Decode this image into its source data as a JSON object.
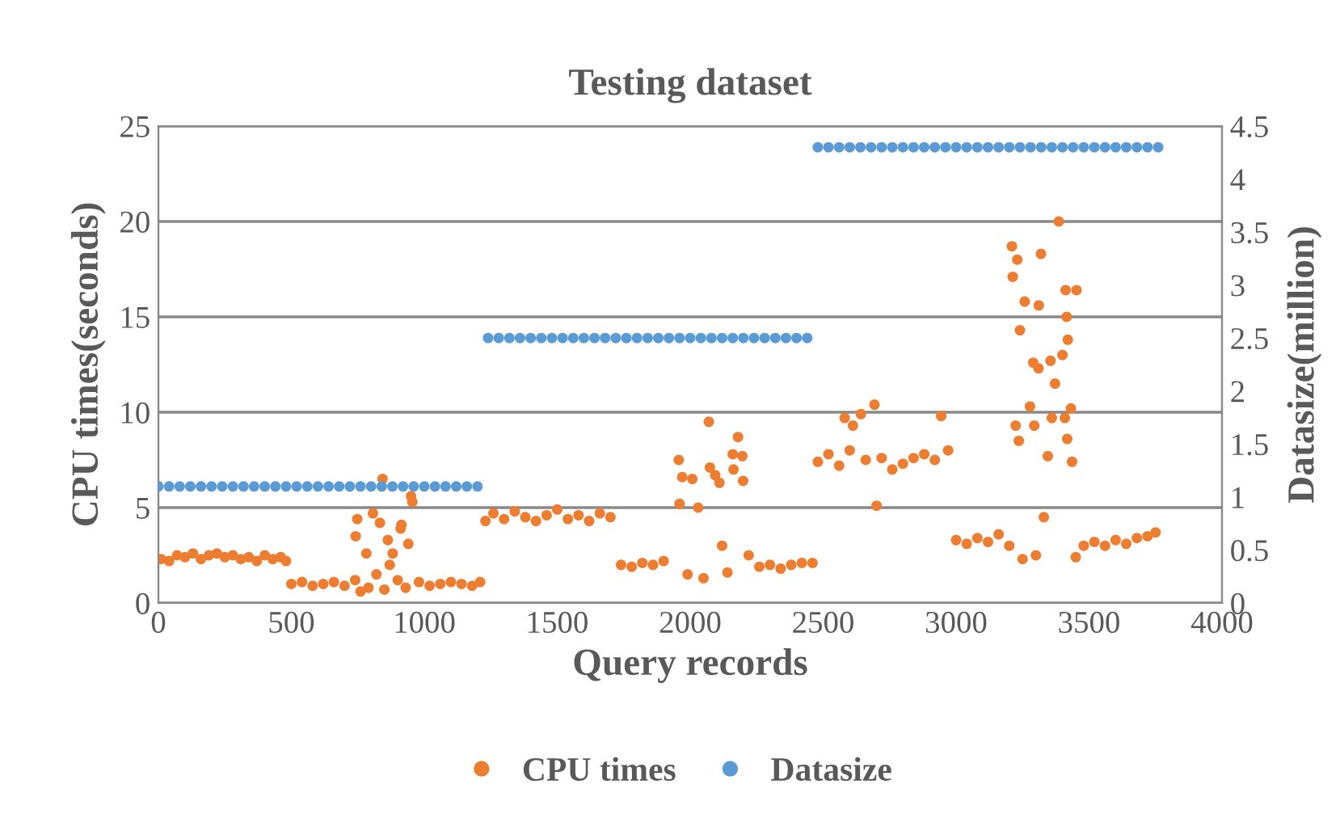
{
  "chart_data": {
    "type": "scatter",
    "title": "Testing dataset",
    "xlabel": "Query records",
    "ylabel": "CPU times(seconds)",
    "y2label": "Datasize(million)",
    "xlim": [
      0,
      4000
    ],
    "xticks": [
      0,
      500,
      1000,
      1500,
      2000,
      2500,
      3000,
      3500,
      4000
    ],
    "ylim": [
      0,
      25
    ],
    "yticks": [
      0,
      5,
      10,
      15,
      20,
      25
    ],
    "y2lim": [
      0,
      4.5
    ],
    "y2ticks": [
      0,
      0.5,
      1,
      1.5,
      2,
      2.5,
      3,
      3.5,
      4,
      4.5
    ],
    "grid": "y",
    "legend": "bottom",
    "marker": "circle",
    "series": [
      {
        "name": "CPU times",
        "color": "#ed7d31",
        "x": [
          10,
          40,
          70,
          100,
          130,
          160,
          190,
          220,
          250,
          280,
          310,
          340,
          370,
          400,
          430,
          460,
          480,
          500,
          540,
          580,
          620,
          660,
          700,
          740,
          742,
          748,
          760,
          782,
          790,
          807,
          820,
          833,
          843,
          850,
          863,
          870,
          881,
          900,
          911,
          914,
          930,
          940,
          950,
          955,
          980,
          1020,
          1060,
          1100,
          1140,
          1180,
          1210,
          1230,
          1260,
          1300,
          1340,
          1380,
          1420,
          1460,
          1500,
          1540,
          1580,
          1620,
          1660,
          1700,
          1740,
          1780,
          1820,
          1860,
          1900,
          1957,
          1960,
          1970,
          1990,
          2008,
          2030,
          2050,
          2070,
          2074,
          2094,
          2110,
          2120,
          2140,
          2160,
          2163,
          2180,
          2196,
          2199,
          2220,
          2260,
          2300,
          2340,
          2380,
          2420,
          2460,
          2480,
          2520,
          2560,
          2581,
          2600,
          2612,
          2642,
          2660,
          2693,
          2701,
          2720,
          2760,
          2800,
          2840,
          2880,
          2920,
          2944,
          2970,
          3000,
          3040,
          3080,
          3120,
          3160,
          3200,
          3210,
          3213,
          3224,
          3230,
          3236,
          3240,
          3250,
          3258,
          3278,
          3290,
          3294,
          3300,
          3310,
          3311,
          3319,
          3330,
          3345,
          3355,
          3360,
          3372,
          3386,
          3400,
          3409,
          3412,
          3416,
          3418,
          3420,
          3432,
          3436,
          3450,
          3453,
          3480,
          3520,
          3560,
          3600,
          3640,
          3680,
          3720,
          3750
        ],
        "values": [
          2.3,
          2.2,
          2.5,
          2.4,
          2.6,
          2.3,
          2.5,
          2.6,
          2.4,
          2.5,
          2.3,
          2.4,
          2.2,
          2.5,
          2.3,
          2.4,
          2.2,
          1.0,
          1.1,
          0.9,
          1.0,
          1.1,
          0.9,
          1.2,
          3.5,
          4.4,
          0.6,
          2.6,
          0.8,
          4.7,
          1.5,
          4.2,
          6.5,
          0.7,
          3.3,
          2.0,
          2.6,
          1.2,
          3.9,
          4.1,
          0.8,
          3.1,
          5.6,
          5.3,
          1.1,
          0.9,
          1.0,
          1.1,
          1.0,
          0.9,
          1.1,
          4.3,
          4.7,
          4.4,
          4.8,
          4.5,
          4.3,
          4.6,
          4.9,
          4.4,
          4.6,
          4.3,
          4.7,
          4.5,
          2.0,
          1.9,
          2.1,
          2.0,
          2.2,
          7.5,
          5.2,
          6.6,
          1.5,
          6.5,
          5.0,
          1.3,
          9.5,
          7.1,
          6.7,
          6.3,
          3.0,
          1.6,
          7.8,
          7.0,
          8.7,
          7.7,
          6.4,
          2.5,
          1.9,
          2.0,
          1.8,
          2.0,
          2.1,
          2.1,
          7.4,
          7.8,
          7.2,
          9.7,
          8.0,
          9.3,
          9.9,
          7.5,
          10.4,
          5.1,
          7.6,
          7.0,
          7.3,
          7.6,
          7.8,
          7.5,
          9.8,
          8.0,
          3.3,
          3.1,
          3.4,
          3.2,
          3.6,
          3.0,
          18.7,
          17.1,
          9.3,
          18.0,
          8.5,
          14.3,
          2.3,
          15.8,
          10.3,
          12.6,
          9.3,
          2.5,
          12.3,
          15.6,
          18.3,
          4.5,
          7.7,
          12.7,
          9.7,
          11.5,
          20.0,
          13.0,
          9.7,
          16.4,
          15.0,
          8.6,
          13.8,
          10.2,
          7.4,
          2.4,
          16.4,
          3.0,
          3.2,
          3.0,
          3.3,
          3.1,
          3.4,
          3.5,
          3.7
        ]
      },
      {
        "name": "Datasize",
        "color": "#5b9bd5",
        "axis": "y2",
        "x": [
          0,
          40,
          80,
          120,
          160,
          200,
          240,
          280,
          320,
          360,
          400,
          440,
          480,
          520,
          560,
          600,
          640,
          680,
          720,
          760,
          800,
          840,
          880,
          920,
          960,
          1000,
          1040,
          1080,
          1120,
          1160,
          1200,
          1240,
          1280,
          1320,
          1360,
          1400,
          1440,
          1480,
          1520,
          1560,
          1600,
          1640,
          1680,
          1720,
          1760,
          1800,
          1840,
          1880,
          1920,
          1960,
          2000,
          2040,
          2080,
          2120,
          2160,
          2200,
          2240,
          2280,
          2320,
          2360,
          2400,
          2440,
          2480,
          2520,
          2560,
          2600,
          2640,
          2680,
          2720,
          2760,
          2800,
          2840,
          2880,
          2920,
          2960,
          3000,
          3040,
          3080,
          3120,
          3160,
          3200,
          3240,
          3280,
          3320,
          3360,
          3400,
          3440,
          3480,
          3520,
          3560,
          3600,
          3640,
          3680,
          3720,
          3760
        ],
        "values": [
          1.1,
          1.1,
          1.1,
          1.1,
          1.1,
          1.1,
          1.1,
          1.1,
          1.1,
          1.1,
          1.1,
          1.1,
          1.1,
          1.1,
          1.1,
          1.1,
          1.1,
          1.1,
          1.1,
          1.1,
          1.1,
          1.1,
          1.1,
          1.1,
          1.1,
          1.1,
          1.1,
          1.1,
          1.1,
          1.1,
          1.1,
          2.5,
          2.5,
          2.5,
          2.5,
          2.5,
          2.5,
          2.5,
          2.5,
          2.5,
          2.5,
          2.5,
          2.5,
          2.5,
          2.5,
          2.5,
          2.5,
          2.5,
          2.5,
          2.5,
          2.5,
          2.5,
          2.5,
          2.5,
          2.5,
          2.5,
          2.5,
          2.5,
          2.5,
          2.5,
          2.5,
          2.5,
          4.3,
          4.3,
          4.3,
          4.3,
          4.3,
          4.3,
          4.3,
          4.3,
          4.3,
          4.3,
          4.3,
          4.3,
          4.3,
          4.3,
          4.3,
          4.3,
          4.3,
          4.3,
          4.3,
          4.3,
          4.3,
          4.3,
          4.3,
          4.3,
          4.3,
          4.3,
          4.3,
          4.3,
          4.3,
          4.3,
          4.3,
          4.3,
          4.3
        ]
      }
    ]
  }
}
